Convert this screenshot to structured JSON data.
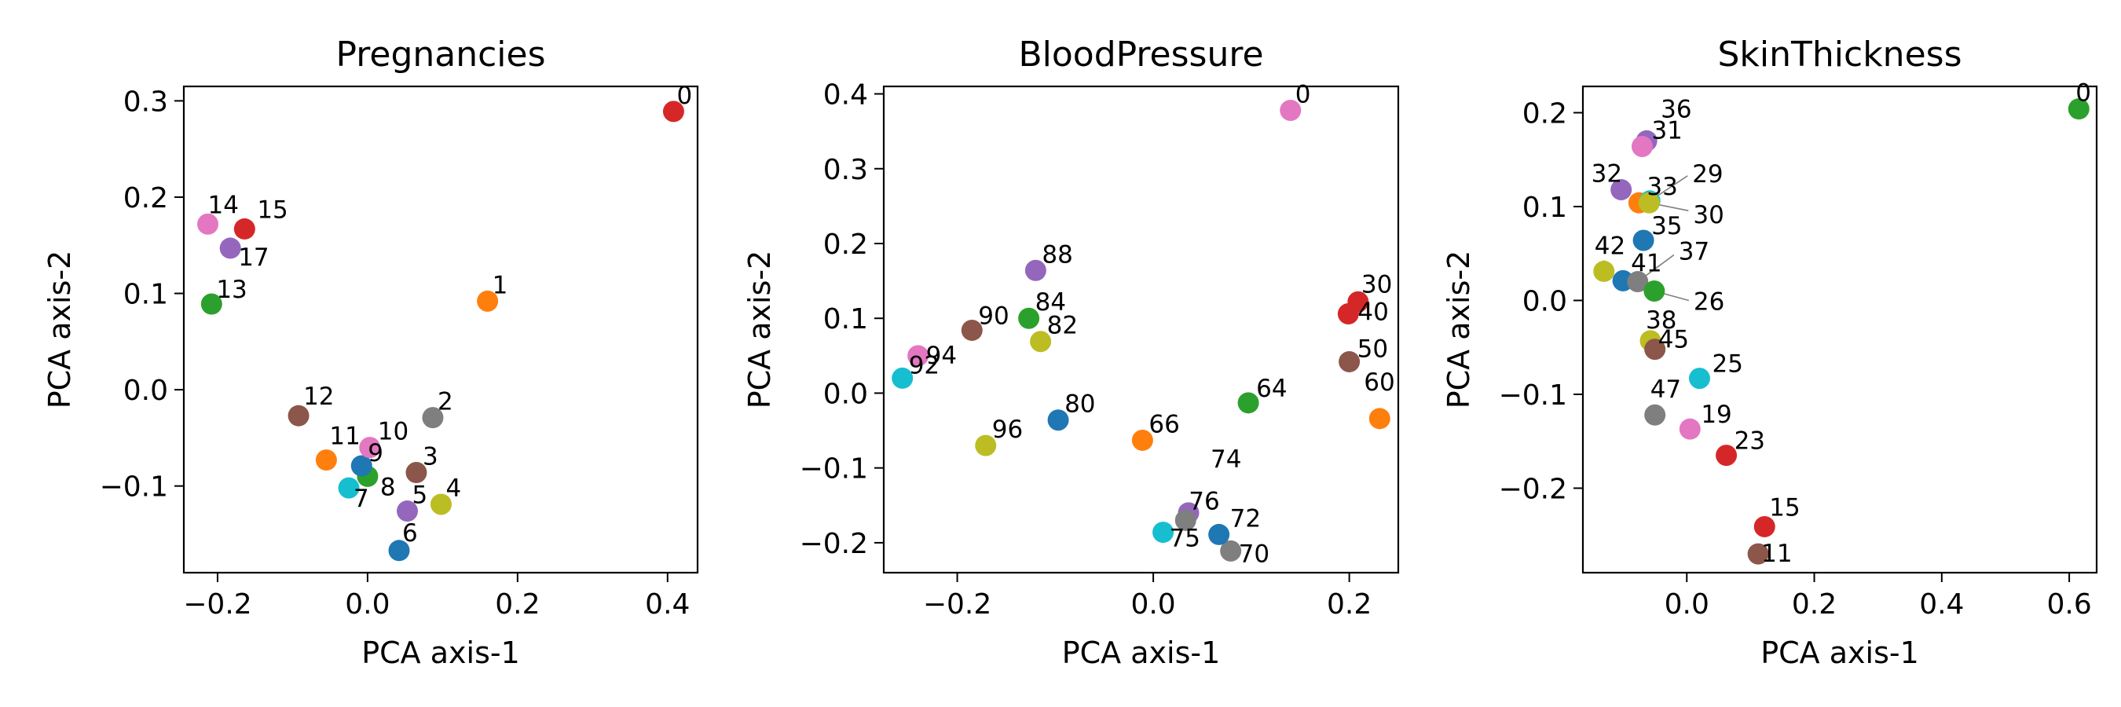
{
  "chart_data": [
    {
      "type": "scatter",
      "title": "Pregnancies",
      "xlabel": "PCA axis-1",
      "ylabel": "PCA axis-2",
      "xlim": [
        -0.245,
        0.44
      ],
      "ylim": [
        -0.19,
        0.315
      ],
      "xticks": [
        -0.2,
        0.0,
        0.2,
        0.4
      ],
      "xtick_labels": [
        "−0.2",
        "0.0",
        "0.2",
        "0.4"
      ],
      "yticks": [
        -0.1,
        0.0,
        0.1,
        0.2,
        0.3
      ],
      "ytick_labels": [
        "−0.1",
        "0.0",
        "0.1",
        "0.2",
        "0.3"
      ],
      "points": [
        {
          "label": "0",
          "x": 0.408,
          "y": 0.289,
          "color": "#d62728"
        },
        {
          "label": "1",
          "x": 0.16,
          "y": 0.092,
          "color": "#ff7f0e"
        },
        {
          "label": "2",
          "x": 0.087,
          "y": -0.029,
          "color": "#7f7f7f"
        },
        {
          "label": "3",
          "x": 0.065,
          "y": -0.086,
          "color": "#8c564b"
        },
        {
          "label": "4",
          "x": 0.098,
          "y": -0.119,
          "color": "#bcbd22"
        },
        {
          "label": "5",
          "x": 0.053,
          "y": -0.126,
          "color": "#9467bd"
        },
        {
          "label": "6",
          "x": 0.042,
          "y": -0.167,
          "color": "#1f77b4"
        },
        {
          "label": "7",
          "x": -0.025,
          "y": -0.102,
          "color": "#17becf"
        },
        {
          "label": "8",
          "x": 0.0,
          "y": -0.09,
          "color": "#2ca02c"
        },
        {
          "label": "9",
          "x": -0.008,
          "y": -0.079,
          "color": "#1f77b4"
        },
        {
          "label": "10",
          "x": 0.003,
          "y": -0.06,
          "color": "#e377c2"
        },
        {
          "label": "11",
          "x": -0.055,
          "y": -0.073,
          "color": "#ff7f0e"
        },
        {
          "label": "12",
          "x": -0.092,
          "y": -0.027,
          "color": "#8c564b"
        },
        {
          "label": "13",
          "x": -0.208,
          "y": 0.089,
          "color": "#2ca02c"
        },
        {
          "label": "14",
          "x": -0.213,
          "y": 0.172,
          "color": "#e377c2"
        },
        {
          "label": "15",
          "x": -0.164,
          "y": 0.167,
          "color": "#d62728"
        },
        {
          "label": "17",
          "x": -0.183,
          "y": 0.147,
          "color": "#9467bd"
        }
      ]
    },
    {
      "type": "scatter",
      "title": "BloodPressure",
      "xlabel": "PCA axis-1",
      "ylabel": "PCA axis-2",
      "xlim": [
        -0.275,
        0.25
      ],
      "ylim": [
        -0.24,
        0.41
      ],
      "xticks": [
        -0.2,
        0.0,
        0.2
      ],
      "xtick_labels": [
        "−0.2",
        "0.0",
        "0.2"
      ],
      "yticks": [
        -0.2,
        -0.1,
        0.0,
        0.1,
        0.2,
        0.3,
        0.4
      ],
      "ytick_labels": [
        "−0.2",
        "−0.1",
        "0.0",
        "0.1",
        "0.2",
        "0.3",
        "0.4"
      ],
      "points": [
        {
          "label": "0",
          "x": 0.14,
          "y": 0.378,
          "color": "#e377c2"
        },
        {
          "label": "30",
          "x": 0.209,
          "y": 0.122,
          "color": "#d62728"
        },
        {
          "label": "40",
          "x": 0.199,
          "y": 0.106,
          "color": "#d62728"
        },
        {
          "label": "50",
          "x": 0.2,
          "y": 0.042,
          "color": "#8c564b"
        },
        {
          "label": "60",
          "x": 0.231,
          "y": -0.034,
          "color": "#ff7f0e"
        },
        {
          "label": "64",
          "x": 0.097,
          "y": -0.013,
          "color": "#2ca02c"
        },
        {
          "label": "66",
          "x": -0.011,
          "y": -0.063,
          "color": "#ff7f0e"
        },
        {
          "label": "70",
          "x": 0.079,
          "y": -0.211,
          "color": "#7f7f7f"
        },
        {
          "label": "72",
          "x": 0.067,
          "y": -0.189,
          "color": "#1f77b4"
        },
        {
          "label": "74",
          "x": 0.036,
          "y": -0.16,
          "color": "#9467bd"
        },
        {
          "label": "75",
          "x": 0.01,
          "y": -0.186,
          "color": "#17becf"
        },
        {
          "label": "76",
          "x": 0.033,
          "y": -0.17,
          "color": "#7f7f7f"
        },
        {
          "label": "80",
          "x": -0.097,
          "y": -0.036,
          "color": "#1f77b4"
        },
        {
          "label": "82",
          "x": -0.115,
          "y": 0.069,
          "color": "#bcbd22"
        },
        {
          "label": "84",
          "x": -0.127,
          "y": 0.1,
          "color": "#2ca02c"
        },
        {
          "label": "88",
          "x": -0.12,
          "y": 0.164,
          "color": "#9467bd"
        },
        {
          "label": "90",
          "x": -0.185,
          "y": 0.084,
          "color": "#8c564b"
        },
        {
          "label": "92",
          "x": -0.256,
          "y": 0.02,
          "color": "#17becf"
        },
        {
          "label": "94",
          "x": -0.24,
          "y": 0.05,
          "color": "#e377c2"
        },
        {
          "label": "96",
          "x": -0.171,
          "y": -0.07,
          "color": "#bcbd22"
        }
      ]
    },
    {
      "type": "scatter",
      "title": "SkinThickness",
      "xlabel": "PCA axis-1",
      "ylabel": "PCA axis-2",
      "xlim": [
        -0.163,
        0.643
      ],
      "ylim": [
        -0.29,
        0.228
      ],
      "xticks": [
        0.0,
        0.2,
        0.4,
        0.6
      ],
      "xtick_labels": [
        "0.0",
        "0.2",
        "0.4",
        "0.6"
      ],
      "yticks": [
        -0.2,
        -0.1,
        0.0,
        0.1,
        0.2
      ],
      "ytick_labels": [
        "−0.2",
        "−0.1",
        "0.0",
        "0.1",
        "0.2"
      ],
      "points": [
        {
          "label": "0",
          "x": 0.615,
          "y": 0.204,
          "color": "#2ca02c"
        },
        {
          "label": "36",
          "x": -0.063,
          "y": 0.17,
          "color": "#9467bd"
        },
        {
          "label": "31",
          "x": -0.07,
          "y": 0.164,
          "color": "#e377c2"
        },
        {
          "label": "32",
          "x": -0.103,
          "y": 0.118,
          "color": "#9467bd"
        },
        {
          "label": "33",
          "x": -0.075,
          "y": 0.104,
          "color": "#ff7f0e"
        },
        {
          "label": "29",
          "x": -0.058,
          "y": 0.106,
          "color": "#17becf"
        },
        {
          "label": "30",
          "x": -0.059,
          "y": 0.104,
          "color": "#bcbd22"
        },
        {
          "label": "35",
          "x": -0.068,
          "y": 0.064,
          "color": "#1f77b4"
        },
        {
          "label": "42",
          "x": -0.13,
          "y": 0.031,
          "color": "#bcbd22"
        },
        {
          "label": "41",
          "x": -0.1,
          "y": 0.021,
          "color": "#1f77b4"
        },
        {
          "label": "37",
          "x": -0.077,
          "y": 0.02,
          "color": "#7f7f7f"
        },
        {
          "label": "26",
          "x": -0.051,
          "y": 0.01,
          "color": "#2ca02c"
        },
        {
          "label": "38",
          "x": -0.057,
          "y": -0.043,
          "color": "#bcbd22"
        },
        {
          "label": "45",
          "x": -0.05,
          "y": -0.052,
          "color": "#8c564b"
        },
        {
          "label": "25",
          "x": 0.02,
          "y": -0.083,
          "color": "#17becf"
        },
        {
          "label": "47",
          "x": -0.05,
          "y": -0.122,
          "color": "#7f7f7f"
        },
        {
          "label": "19",
          "x": 0.005,
          "y": -0.137,
          "color": "#e377c2"
        },
        {
          "label": "23",
          "x": 0.062,
          "y": -0.165,
          "color": "#d62728"
        },
        {
          "label": "15",
          "x": 0.122,
          "y": -0.241,
          "color": "#d62728"
        },
        {
          "label": "11",
          "x": 0.112,
          "y": -0.27,
          "color": "#8c564b"
        }
      ]
    }
  ]
}
